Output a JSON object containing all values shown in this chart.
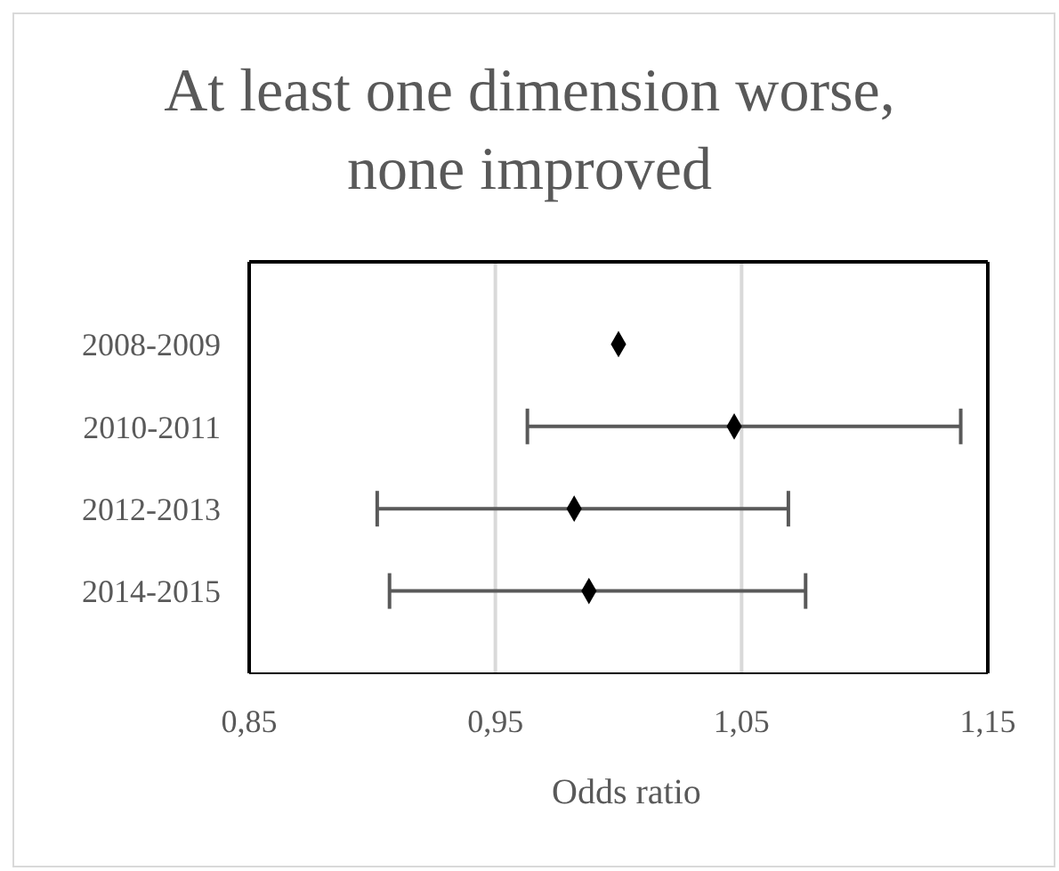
{
  "chart_data": {
    "type": "scatter",
    "title": "At least one dimension worse, none improved",
    "xlabel": "Odds ratio",
    "orientation": "horizontal",
    "categories": [
      "2008-2009",
      "2010-2011",
      "2012-2013",
      "2014-2015"
    ],
    "values": [
      1.0,
      1.047,
      0.982,
      0.988
    ],
    "errors": [
      null,
      [
        0.963,
        1.139
      ],
      [
        0.902,
        1.069
      ],
      [
        0.907,
        1.076
      ]
    ],
    "color": "#000000",
    "marker": "diamond",
    "grid": "x",
    "xlim": [
      0.85,
      1.15
    ],
    "xticks": [
      {
        "value": 0.85,
        "label": "0,85"
      },
      {
        "value": 0.95,
        "label": "0,95"
      },
      {
        "value": 1.05,
        "label": "1,05"
      },
      {
        "value": 1.15,
        "label": "1,15"
      }
    ]
  }
}
